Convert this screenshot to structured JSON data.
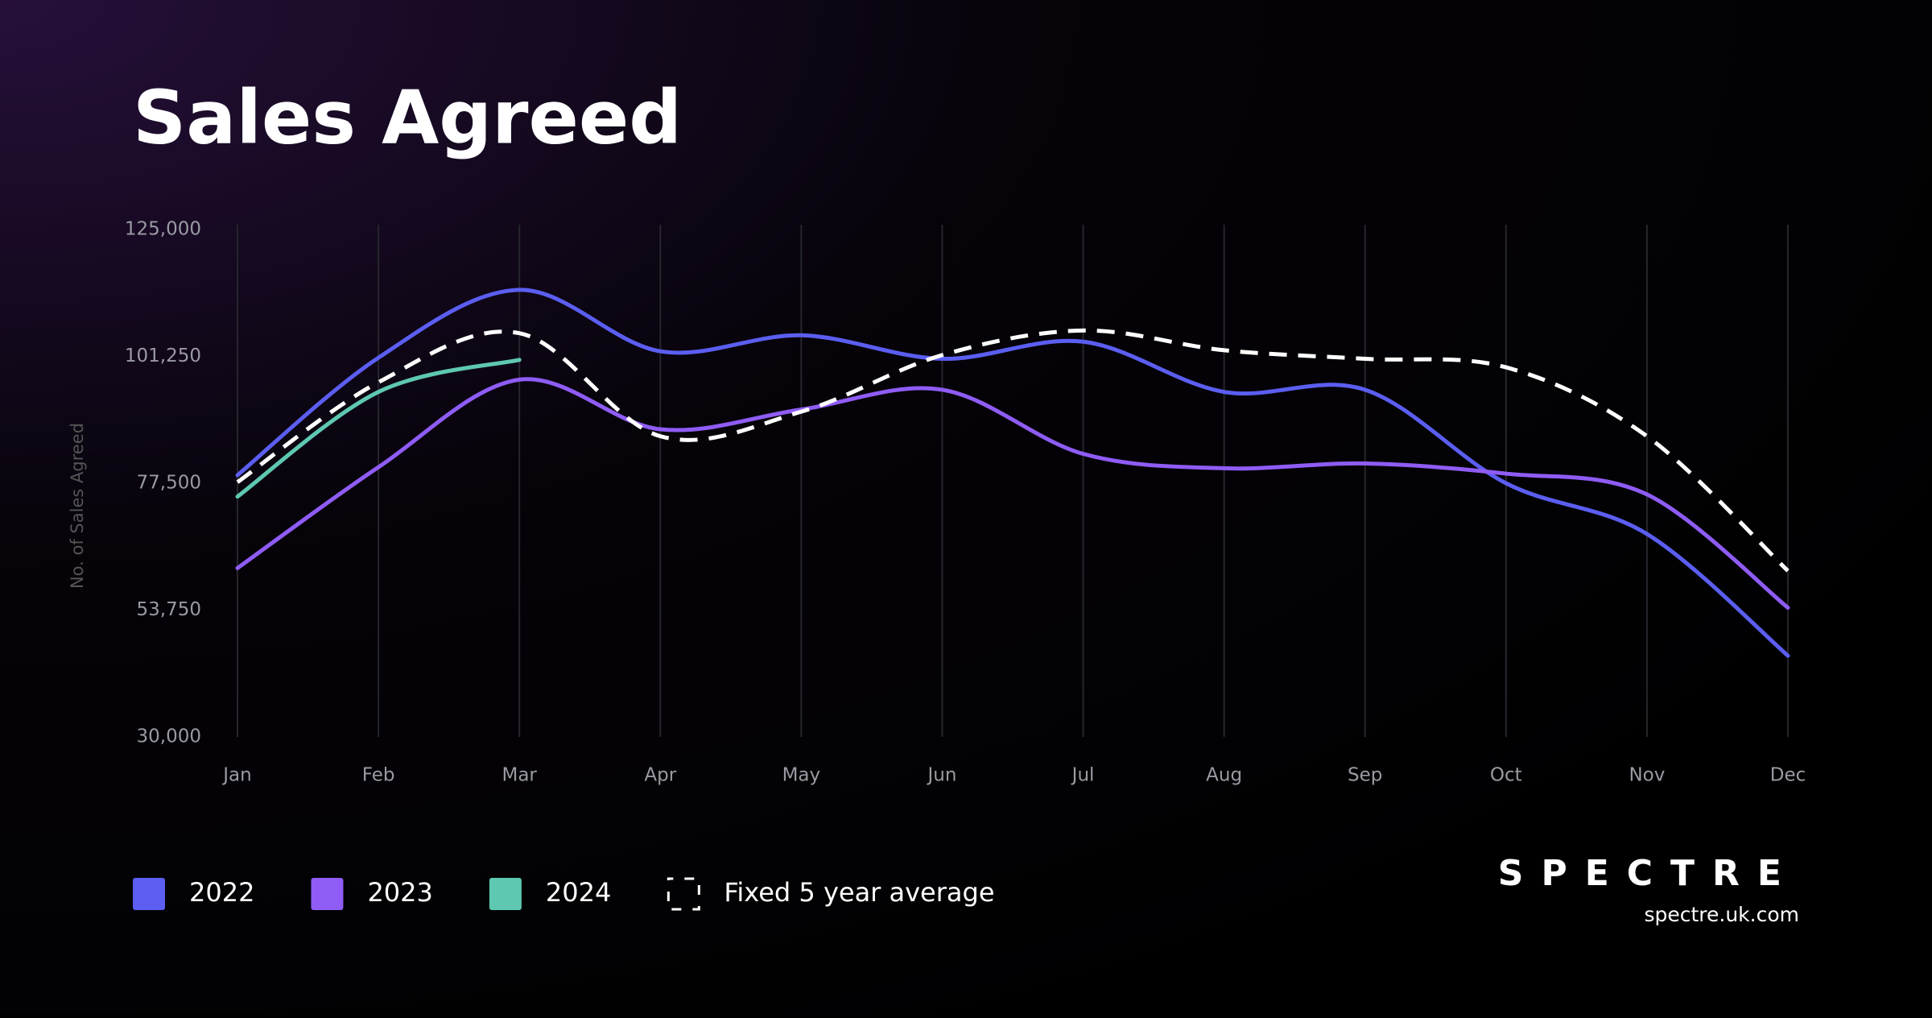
{
  "chart_data": {
    "type": "line",
    "title": "Sales Agreed",
    "y_label": "No. of Sales Agreed",
    "categories": [
      "Jan",
      "Feb",
      "Mar",
      "Apr",
      "May",
      "Jun",
      "Jul",
      "Aug",
      "Sep",
      "Oct",
      "Nov",
      "Dec"
    ],
    "series": [
      {
        "name": "2022",
        "color": "#5b5ef0",
        "values": [
          79000,
          101000,
          113700,
          102200,
          105200,
          100800,
          104000,
          94600,
          95000,
          77500,
          68000,
          45200
        ]
      },
      {
        "name": "2023",
        "color": "#8f5cf5",
        "values": [
          61600,
          80500,
          96900,
          87600,
          91300,
          95000,
          83000,
          80300,
          81200,
          79300,
          75400,
          54200
        ]
      },
      {
        "name": "2024",
        "color": "#5ec8b0",
        "values": [
          75000,
          94600,
          100600,
          null,
          null,
          null,
          null,
          null,
          null,
          null,
          null,
          null
        ]
      },
      {
        "name": "Fixed 5 year average",
        "color": "#ffffff",
        "dashed": true,
        "values": [
          77700,
          96400,
          105600,
          86300,
          90900,
          101500,
          106100,
          102400,
          100800,
          99200,
          86300,
          61100
        ]
      }
    ],
    "ylim": [
      30000,
      125000
    ],
    "yticks": [
      {
        "value": 30000,
        "label": "30,000"
      },
      {
        "value": 53750,
        "label": "53,750"
      },
      {
        "value": 77500,
        "label": "77,500"
      },
      {
        "value": 101250,
        "label": "101,250"
      },
      {
        "value": 125000,
        "label": "125,000"
      }
    ],
    "brand": "SPECTRE",
    "website": "spectre.uk.com"
  }
}
